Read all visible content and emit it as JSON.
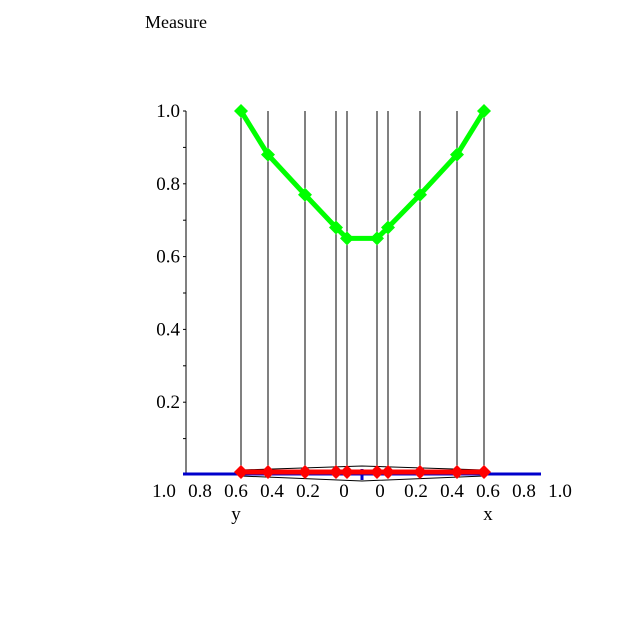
{
  "chart_data": {
    "type": "line",
    "title": "Measure",
    "ylim": [
      0,
      1.0
    ],
    "y_ticks": [
      "0.2",
      "0.4",
      "0.6",
      "0.8",
      "1.0"
    ],
    "bottom_tick_labels": [
      "1.0",
      "0.8",
      "0.6",
      "0.4",
      "0.2",
      "0",
      "0",
      "0.2",
      "0.4",
      "0.6",
      "0.8",
      "1.0"
    ],
    "xlabel": "x",
    "ylabel": "y",
    "grid": false,
    "series": [
      {
        "color": "#00ff00",
        "marker": "diamond",
        "values": [
          1.0,
          0.88,
          0.77,
          0.68,
          0.65,
          0.65,
          0.68,
          0.77,
          0.88,
          1.0
        ]
      },
      {
        "color": "#ff0000",
        "marker": "diamond",
        "values": [
          0.01,
          0.01,
          0.01,
          0.01,
          0.01,
          0.01,
          0.01,
          0.01,
          0.01,
          0.01
        ]
      },
      {
        "color": "#0000cc",
        "marker": "none",
        "values": [
          0,
          0
        ]
      }
    ]
  }
}
